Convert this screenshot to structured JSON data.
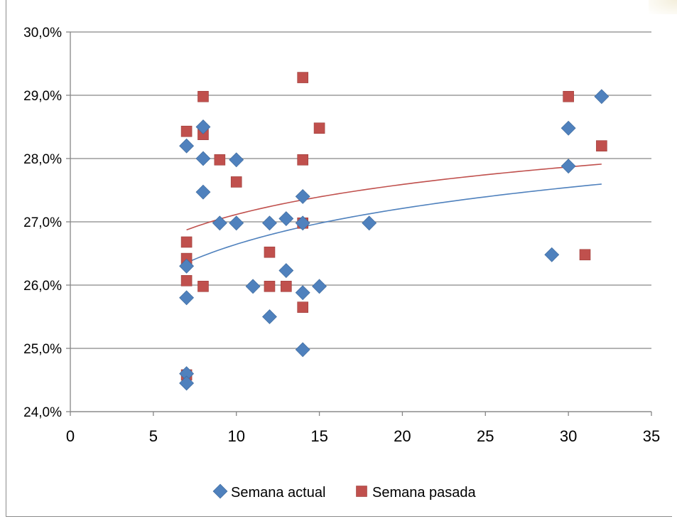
{
  "chart_data": {
    "type": "scatter",
    "title": "",
    "xlabel": "",
    "ylabel": "",
    "xlim": [
      0,
      35
    ],
    "ylim": [
      24.0,
      30.0
    ],
    "x_ticks": [
      0,
      5,
      10,
      15,
      20,
      25,
      30,
      35
    ],
    "x_tick_labels": [
      "0",
      "5",
      "10",
      "15",
      "20",
      "25",
      "30",
      "35"
    ],
    "y_ticks": [
      24.0,
      25.0,
      26.0,
      27.0,
      28.0,
      29.0,
      30.0
    ],
    "y_tick_labels": [
      "24,0%",
      "25,0%",
      "26,0%",
      "27,0%",
      "28,0%",
      "29,0%",
      "30,0%"
    ],
    "grid": "horizontal",
    "legend_position": "bottom",
    "series": [
      {
        "name": "Semana actual",
        "color": "#4f81bd",
        "marker": "diamond",
        "trendline": "logarithmic",
        "points": [
          [
            7,
            28.2
          ],
          [
            7,
            26.3
          ],
          [
            7,
            25.8
          ],
          [
            7,
            24.6
          ],
          [
            7,
            24.45
          ],
          [
            8,
            28.5
          ],
          [
            8,
            28.0
          ],
          [
            8,
            27.47
          ],
          [
            9,
            26.98
          ],
          [
            10,
            27.98
          ],
          [
            10,
            26.98
          ],
          [
            11,
            25.98
          ],
          [
            12,
            26.98
          ],
          [
            12,
            25.5
          ],
          [
            13,
            27.05
          ],
          [
            13,
            26.23
          ],
          [
            14,
            27.4
          ],
          [
            14,
            26.98
          ],
          [
            14,
            25.88
          ],
          [
            14,
            24.98
          ],
          [
            15,
            25.98
          ],
          [
            18,
            26.98
          ],
          [
            29,
            26.48
          ],
          [
            30,
            28.48
          ],
          [
            30,
            27.88
          ],
          [
            32,
            28.98
          ]
        ]
      },
      {
        "name": "Semana pasada",
        "color": "#c0504d",
        "marker": "square",
        "trendline": "logarithmic",
        "points": [
          [
            7,
            28.43
          ],
          [
            7,
            26.68
          ],
          [
            7,
            26.42
          ],
          [
            7,
            26.07
          ],
          [
            7,
            24.58
          ],
          [
            8,
            28.98
          ],
          [
            8,
            28.38
          ],
          [
            8,
            25.98
          ],
          [
            9,
            27.98
          ],
          [
            10,
            27.63
          ],
          [
            12,
            26.52
          ],
          [
            12,
            25.98
          ],
          [
            13,
            25.98
          ],
          [
            14,
            29.28
          ],
          [
            14,
            27.98
          ],
          [
            14,
            26.98
          ],
          [
            14,
            25.65
          ],
          [
            15,
            28.48
          ],
          [
            30,
            28.98
          ],
          [
            31,
            26.48
          ],
          [
            32,
            28.2
          ]
        ]
      }
    ]
  }
}
